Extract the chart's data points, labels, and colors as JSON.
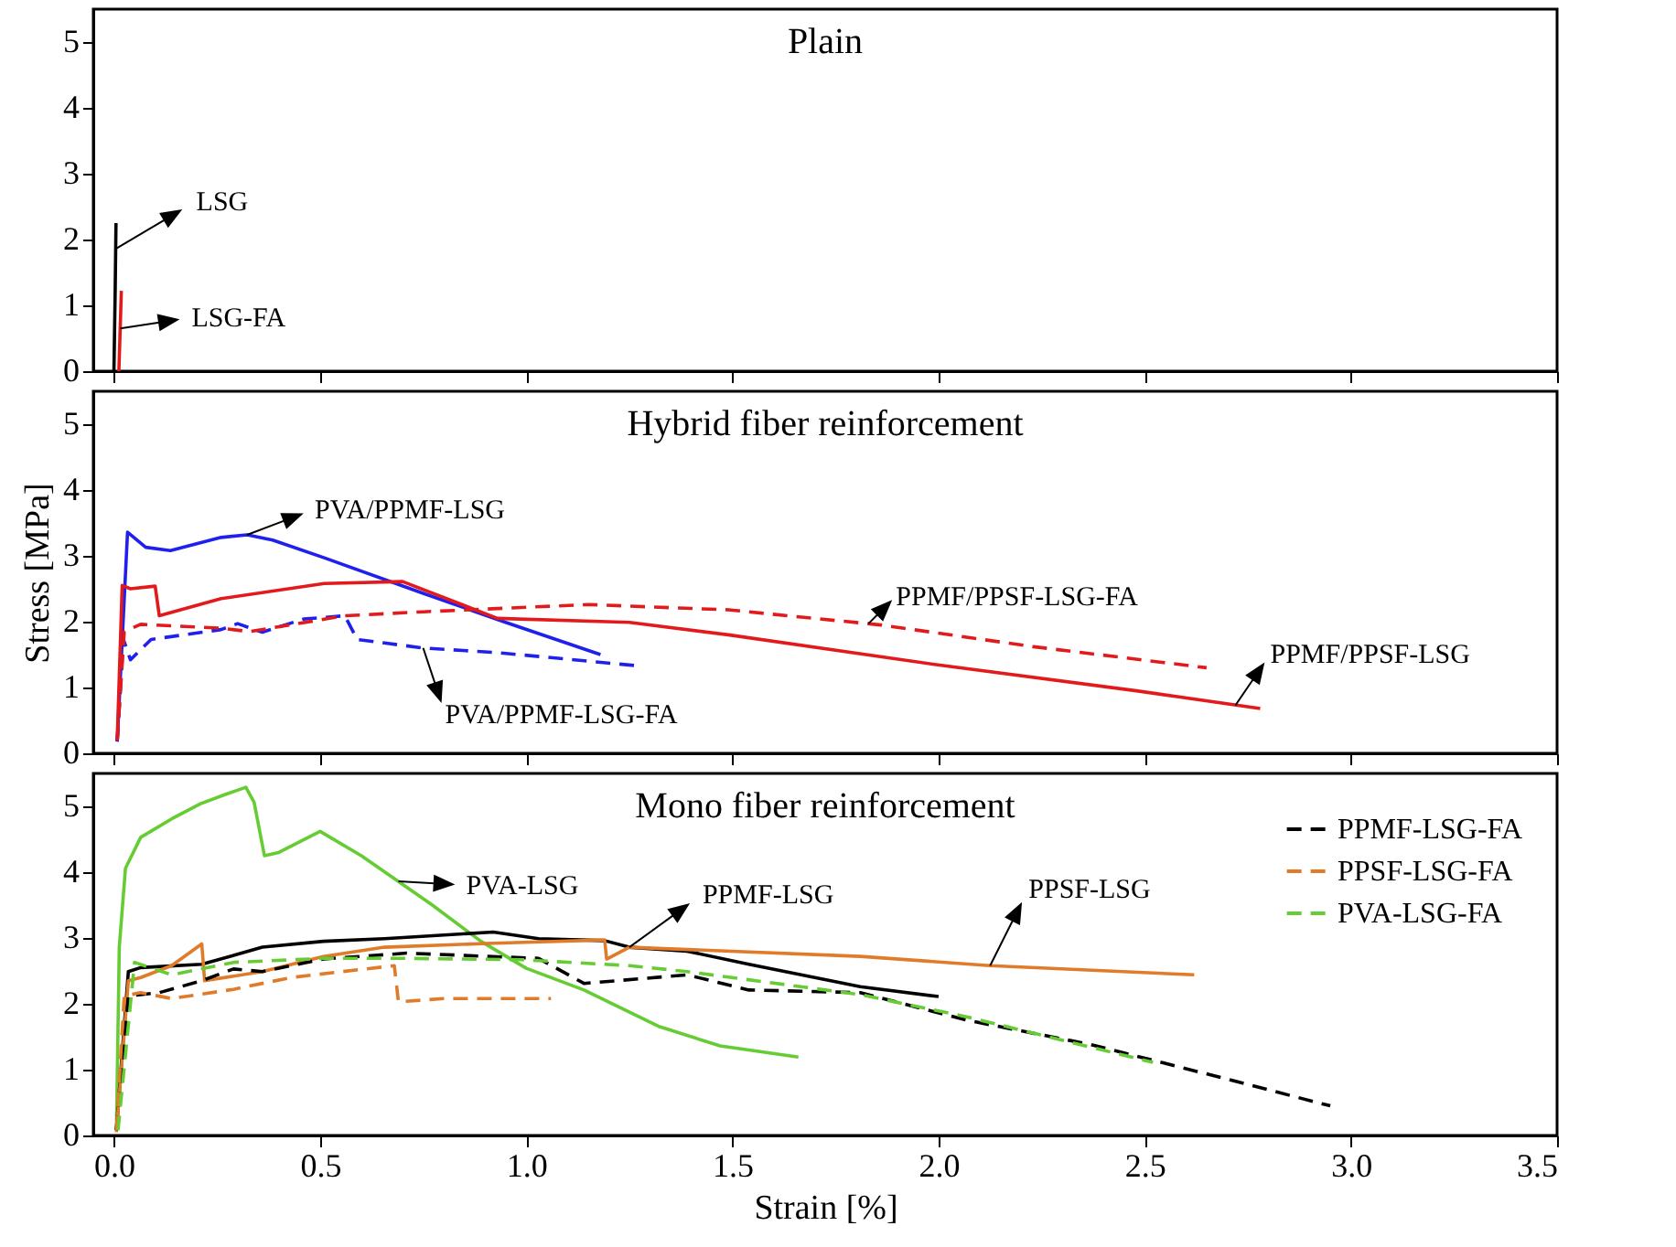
{
  "chart_data": [
    {
      "type": "line",
      "title": "Plain",
      "xlim": [
        -0.05,
        3.5
      ],
      "ylim": [
        0,
        5.5
      ],
      "yticks": [
        0,
        1,
        2,
        3,
        4,
        5
      ],
      "xticks": [
        0,
        0.5,
        1,
        1.5,
        2,
        2.5,
        3,
        3.5
      ],
      "tick_labels": "y",
      "grid": false,
      "legend": false,
      "marker": "none",
      "series": [
        {
          "color": "#000000",
          "line_style": "solid",
          "x": [
            0,
            0.003,
            0.005
          ],
          "values": [
            0,
            1.2,
            2.25
          ]
        },
        {
          "color": "#e31a1c",
          "line_style": "solid",
          "x": [
            0.012,
            0.018
          ],
          "values": [
            0,
            1.22
          ]
        }
      ],
      "annotations": [
        {
          "text": "LSG",
          "x": 0.0045,
          "y": 1.86
        },
        {
          "text": "LSG-FA",
          "x": 0.0152,
          "y": 0.65
        }
      ]
    },
    {
      "type": "line",
      "title": "Hybrid fiber reinforcement",
      "ylabel": "Stress [MPa]",
      "xlim": [
        -0.05,
        3.5
      ],
      "ylim": [
        0,
        5.5
      ],
      "yticks": [
        0,
        1,
        2,
        3,
        4,
        5
      ],
      "xticks": [
        0,
        0.5,
        1,
        1.5,
        2,
        2.5,
        3,
        3.5
      ],
      "tick_labels": "y",
      "grid": false,
      "legend": false,
      "marker": "none",
      "series": [
        {
          "color": "#2020ee",
          "line_style": "solid",
          "x": [
            0.008,
            0.033,
            0.077,
            0.137,
            0.26,
            0.323,
            0.385,
            0.51,
            0.75,
            0.95,
            1.18
          ],
          "values": [
            0.18,
            3.36,
            3.13,
            3.08,
            3.28,
            3.32,
            3.24,
            2.97,
            2.43,
            1.99,
            1.5
          ]
        },
        {
          "color": "#2020ee",
          "line_style": "dashed",
          "x": [
            0.008,
            0.023,
            0.04,
            0.09,
            0.26,
            0.3,
            0.36,
            0.46,
            0.56,
            0.59,
            0.75,
            0.93,
            1.27
          ],
          "values": [
            0.18,
            1.73,
            1.42,
            1.73,
            1.88,
            1.97,
            1.84,
            2.04,
            2.09,
            1.73,
            1.6,
            1.53,
            1.33
          ]
        },
        {
          "color": "#e31a1c",
          "line_style": "solid",
          "x": [
            0.008,
            0.02,
            0.04,
            0.1,
            0.11,
            0.26,
            0.51,
            0.7,
            0.93,
            1.25,
            1.49,
            1.99,
            2.48,
            2.78
          ],
          "values": [
            0.2,
            2.55,
            2.5,
            2.54,
            2.09,
            2.35,
            2.58,
            2.61,
            2.05,
            1.99,
            1.8,
            1.35,
            0.95,
            0.68
          ]
        },
        {
          "color": "#e31a1c",
          "line_style": "dashed",
          "x": [
            0.008,
            0.025,
            0.065,
            0.26,
            0.33,
            0.56,
            0.75,
            1.15,
            1.49,
            1.86,
            2.23,
            2.65
          ],
          "values": [
            0.2,
            1.85,
            1.96,
            1.9,
            1.85,
            2.09,
            2.15,
            2.26,
            2.18,
            1.95,
            1.62,
            1.3
          ]
        }
      ],
      "annotations": [
        {
          "text": "PVA/PPMF-LSG",
          "x": 0.323,
          "y": 3.32
        },
        {
          "text": "PVA/PPMF-LSG-FA",
          "x": 0.75,
          "y": 1.6
        },
        {
          "text": "PPMF/PPSF-LSG-FA",
          "x": 1.83,
          "y": 1.97
        },
        {
          "text": "PPMF/PPSF-LSG",
          "x": 2.72,
          "y": 0.73
        }
      ]
    },
    {
      "type": "line",
      "title": "Mono fiber reinforcement",
      "xlabel": "Strain [%]",
      "xlim": [
        -0.05,
        3.5
      ],
      "ylim": [
        0,
        5.5
      ],
      "yticks": [
        0,
        1,
        2,
        3,
        4,
        5
      ],
      "xticks": [
        {
          "value": 0,
          "label": "0.0"
        },
        {
          "value": 0.5,
          "label": "0.5"
        },
        {
          "value": 1,
          "label": "1.0"
        },
        {
          "value": 1.5,
          "label": "1.5"
        },
        {
          "value": 2,
          "label": "2.0"
        },
        {
          "value": 2.5,
          "label": "2.5"
        },
        {
          "value": 3,
          "label": "3.0"
        },
        {
          "value": 3.5,
          "label": "3.5"
        }
      ],
      "grid": false,
      "legend": "top right",
      "marker": "none",
      "series": [
        {
          "color": "#66cc33",
          "line_style": "solid",
          "x": [
            0.006,
            0.013,
            0.028,
            0.065,
            0.14,
            0.21,
            0.27,
            0.32,
            0.34,
            0.365,
            0.4,
            0.5,
            0.6,
            0.77,
            0.89,
            1.0,
            1.14,
            1.32,
            1.47,
            1.66
          ],
          "values": [
            0.08,
            2.86,
            4.06,
            4.53,
            4.81,
            5.04,
            5.18,
            5.29,
            5.06,
            4.25,
            4.3,
            4.62,
            4.25,
            3.51,
            2.95,
            2.54,
            2.21,
            1.66,
            1.36,
            1.19
          ]
        },
        {
          "color": "#000000",
          "line_style": "solid",
          "x": [
            0.006,
            0.035,
            0.065,
            0.213,
            0.36,
            0.508,
            0.656,
            0.92,
            1.03,
            1.19,
            1.25,
            1.39,
            1.54,
            1.81,
            2.0
          ],
          "values": [
            0.08,
            2.49,
            2.55,
            2.6,
            2.86,
            2.95,
            2.99,
            3.09,
            2.99,
            2.96,
            2.86,
            2.8,
            2.6,
            2.26,
            2.11
          ]
        },
        {
          "color": "#e07b2a",
          "line_style": "solid",
          "x": [
            0.006,
            0.035,
            0.065,
            0.14,
            0.213,
            0.22,
            0.36,
            0.508,
            0.656,
            0.92,
            1.19,
            1.195,
            1.25,
            1.81,
            2.125,
            2.62
          ],
          "values": [
            0.05,
            2.35,
            2.4,
            2.58,
            2.91,
            2.35,
            2.49,
            2.72,
            2.86,
            2.92,
            2.97,
            2.68,
            2.86,
            2.72,
            2.58,
            2.44
          ]
        },
        {
          "name": "PPMF-LSG-FA",
          "color": "#000000",
          "line_style": "dashed",
          "x": [
            0.006,
            0.035,
            0.11,
            0.213,
            0.29,
            0.36,
            0.508,
            0.71,
            1.03,
            1.14,
            1.39,
            1.54,
            1.81,
            2.07,
            2.37,
            2.66,
            2.95
          ],
          "values": [
            0.08,
            2.12,
            2.17,
            2.35,
            2.53,
            2.49,
            2.68,
            2.77,
            2.69,
            2.31,
            2.44,
            2.21,
            2.17,
            1.75,
            1.38,
            0.92,
            0.45
          ]
        },
        {
          "name": "PPSF-LSG-FA",
          "color": "#e07b2a",
          "line_style": "dashed",
          "x": [
            0.006,
            0.025,
            0.065,
            0.14,
            0.29,
            0.43,
            0.68,
            0.69,
            0.8,
            1.06
          ],
          "values": [
            0.08,
            2.12,
            2.17,
            2.08,
            2.22,
            2.4,
            2.58,
            2.03,
            2.08,
            2.08
          ]
        },
        {
          "name": "PVA-LSG-FA",
          "color": "#66cc33",
          "line_style": "dashed",
          "x": [
            0.01,
            0.05,
            0.14,
            0.29,
            0.508,
            0.71,
            0.99,
            1.25,
            1.39,
            1.81,
            2.07,
            2.52
          ],
          "values": [
            0.08,
            2.63,
            2.44,
            2.63,
            2.69,
            2.69,
            2.67,
            2.58,
            2.49,
            2.14,
            1.8,
            1.11
          ]
        }
      ],
      "annotations": [
        {
          "text": "PVA-LSG",
          "x": 0.69,
          "y": 3.86
        },
        {
          "text": "PPMF-LSG",
          "x": 1.25,
          "y": 2.86
        },
        {
          "text": "PPSF-LSG",
          "x": 2.125,
          "y": 2.58
        }
      ]
    }
  ]
}
